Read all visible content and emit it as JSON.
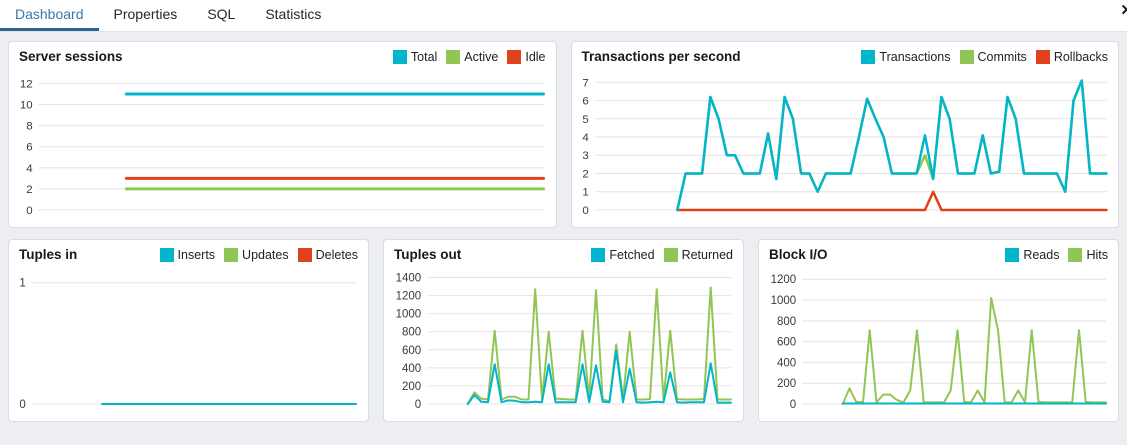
{
  "tabs": {
    "items": [
      {
        "label": "Dashboard",
        "active": true
      },
      {
        "label": "Properties",
        "active": false
      },
      {
        "label": "SQL",
        "active": false
      },
      {
        "label": "Statistics",
        "active": false
      }
    ],
    "close_glyph": "✕"
  },
  "colors": {
    "accent_cyan": "#00b5cc",
    "accent_green": "#90c654",
    "accent_red": "#e0431c",
    "tab_active_text": "#3a78ad",
    "tab_active_underline": "#2e638f",
    "grid_line": "#e4e4e4",
    "tick_text": "#3a3a3a"
  },
  "chart_data": [
    {
      "type": "line",
      "title": "Server sessions",
      "ylim": [
        0,
        12.8
      ],
      "yticks": [
        0,
        2,
        4,
        6,
        8,
        10,
        12
      ],
      "grid": true,
      "legend_position": "top-right",
      "line_width": 3,
      "series": [
        {
          "name": "Total",
          "color": "#00b5cc",
          "values": [
            null,
            null,
            null,
            null,
            11,
            11,
            11,
            11,
            11,
            11,
            11,
            11,
            11,
            11,
            11,
            11,
            11,
            11,
            11,
            11,
            11,
            11,
            11,
            11
          ]
        },
        {
          "name": "Active",
          "color": "#90c654",
          "values": [
            null,
            null,
            null,
            null,
            2,
            2,
            2,
            2,
            2,
            2,
            2,
            2,
            2,
            2,
            2,
            2,
            2,
            2,
            2,
            2,
            2,
            2,
            2,
            2
          ]
        },
        {
          "name": "Idle",
          "color": "#e0431c",
          "values": [
            null,
            null,
            null,
            null,
            3,
            3,
            3,
            3,
            3,
            3,
            3,
            3,
            3,
            3,
            3,
            3,
            3,
            3,
            3,
            3,
            3,
            3,
            3,
            3
          ]
        }
      ]
    },
    {
      "type": "line",
      "title": "Transactions per second",
      "ylim": [
        0,
        7.4
      ],
      "yticks": [
        0,
        1,
        2,
        3,
        4,
        5,
        6,
        7
      ],
      "grid": true,
      "legend_position": "top-right",
      "line_width": 2.5,
      "series": [
        {
          "name": "Transactions",
          "color": "#00b5cc",
          "values": [
            null,
            null,
            null,
            null,
            null,
            null,
            null,
            null,
            null,
            null,
            0,
            2,
            2,
            2,
            6.2,
            5,
            3,
            3,
            2,
            2,
            2,
            4.2,
            1.7,
            6.2,
            5,
            2,
            2,
            1,
            2,
            2,
            2,
            2,
            4,
            6.1,
            5,
            4,
            2,
            2,
            2,
            2,
            4.1,
            1.7,
            6.2,
            5,
            2,
            2,
            2,
            4.1,
            2,
            2.1,
            6.2,
            5,
            2,
            2,
            2,
            2,
            2,
            1,
            6,
            7.1,
            2,
            2,
            2
          ]
        },
        {
          "name": "Commits",
          "color": "#90c654",
          "values": [
            null,
            null,
            null,
            null,
            null,
            null,
            null,
            null,
            null,
            null,
            0,
            2,
            2,
            2,
            6.2,
            5,
            3,
            3,
            2,
            2,
            2,
            4.2,
            1.7,
            6.2,
            5,
            2,
            2,
            1,
            2,
            2,
            2,
            2,
            4,
            6.1,
            5,
            4,
            2,
            2,
            2,
            2,
            3,
            1.7,
            6.2,
            5,
            2,
            2,
            2,
            4.1,
            2,
            2.1,
            6.2,
            5,
            2,
            2,
            2,
            2,
            2,
            1,
            6,
            7.1,
            2,
            2,
            2
          ]
        },
        {
          "name": "Rollbacks",
          "color": "#e0431c",
          "values": [
            null,
            null,
            null,
            null,
            null,
            null,
            null,
            null,
            null,
            null,
            0,
            0,
            0,
            0,
            0,
            0,
            0,
            0,
            0,
            0,
            0,
            0,
            0,
            0,
            0,
            0,
            0,
            0,
            0,
            0,
            0,
            0,
            0,
            0,
            0,
            0,
            0,
            0,
            0,
            0,
            0,
            1,
            0,
            0,
            0,
            0,
            0,
            0,
            0,
            0,
            0,
            0,
            0,
            0,
            0,
            0,
            0,
            0,
            0,
            0,
            0,
            0,
            0
          ]
        }
      ]
    },
    {
      "type": "line",
      "title": "Tuples in",
      "ylim": [
        0,
        1.08
      ],
      "yticks": [
        0,
        1
      ],
      "grid": true,
      "legend_position": "top-right",
      "line_width": 2,
      "series": [
        {
          "name": "Inserts",
          "color": "#00b5cc",
          "values": [
            null,
            null,
            null,
            null,
            null,
            0,
            0,
            0,
            0,
            0,
            0,
            0,
            0,
            0,
            0,
            0,
            0,
            0,
            0,
            0,
            0,
            0,
            0,
            0
          ]
        },
        {
          "name": "Updates",
          "color": "#90c654",
          "values": [
            null,
            null,
            null,
            null,
            null,
            0,
            0,
            0,
            0,
            0,
            0,
            0,
            0,
            0,
            0,
            0,
            0,
            0,
            0,
            0,
            0,
            0,
            0,
            0
          ]
        },
        {
          "name": "Deletes",
          "color": "#e0431c",
          "values": [
            null,
            null,
            null,
            null,
            null,
            0,
            0,
            0,
            0,
            0,
            0,
            0,
            0,
            0,
            0,
            0,
            0,
            0,
            0,
            0,
            0,
            0,
            0,
            0
          ]
        }
      ]
    },
    {
      "type": "line",
      "title": "Tuples out",
      "ylim": [
        0,
        1450
      ],
      "yticks": [
        0,
        200,
        400,
        600,
        800,
        1000,
        1200,
        1400
      ],
      "grid": true,
      "legend_position": "top-right",
      "line_width": 2,
      "series": [
        {
          "name": "Fetched",
          "color": "#00b5cc",
          "values": [
            null,
            null,
            null,
            null,
            null,
            null,
            0,
            100,
            25,
            20,
            440,
            20,
            40,
            35,
            20,
            20,
            25,
            20,
            440,
            20,
            20,
            20,
            20,
            440,
            20,
            430,
            25,
            20,
            590,
            20,
            390,
            20,
            15,
            20,
            25,
            20,
            350,
            20,
            15,
            20,
            20,
            20,
            450,
            15,
            15,
            15
          ]
        },
        {
          "name": "Returned",
          "color": "#90c654",
          "values": [
            null,
            null,
            null,
            null,
            null,
            null,
            0,
            130,
            60,
            50,
            810,
            50,
            80,
            80,
            50,
            50,
            1270,
            50,
            800,
            60,
            55,
            50,
            50,
            810,
            55,
            1260,
            50,
            30,
            660,
            55,
            800,
            50,
            50,
            55,
            1270,
            50,
            810,
            55,
            50,
            50,
            50,
            55,
            1290,
            50,
            50,
            50
          ]
        }
      ]
    },
    {
      "type": "line",
      "title": "Block I/O",
      "ylim": [
        0,
        1260
      ],
      "yticks": [
        0,
        200,
        400,
        600,
        800,
        1000,
        1200
      ],
      "grid": true,
      "legend_position": "top-right",
      "line_width": 2,
      "series": [
        {
          "name": "Reads",
          "color": "#00b5cc",
          "values": [
            null,
            null,
            null,
            null,
            null,
            null,
            5,
            5,
            5,
            5,
            5,
            5,
            5,
            5,
            5,
            5,
            5,
            5,
            5,
            5,
            5,
            5,
            5,
            5,
            5,
            5,
            5,
            5,
            5,
            5,
            5,
            5,
            5,
            5,
            5,
            5,
            5,
            5,
            5,
            5,
            5,
            5,
            5,
            5,
            5,
            5
          ]
        },
        {
          "name": "Hits",
          "color": "#90c654",
          "values": [
            null,
            null,
            null,
            null,
            null,
            null,
            0,
            150,
            20,
            15,
            710,
            15,
            90,
            90,
            40,
            15,
            130,
            710,
            15,
            15,
            15,
            15,
            130,
            710,
            20,
            15,
            130,
            15,
            1020,
            710,
            15,
            15,
            130,
            15,
            710,
            20,
            15,
            15,
            15,
            15,
            15,
            710,
            20,
            15,
            15,
            15
          ]
        }
      ]
    }
  ]
}
